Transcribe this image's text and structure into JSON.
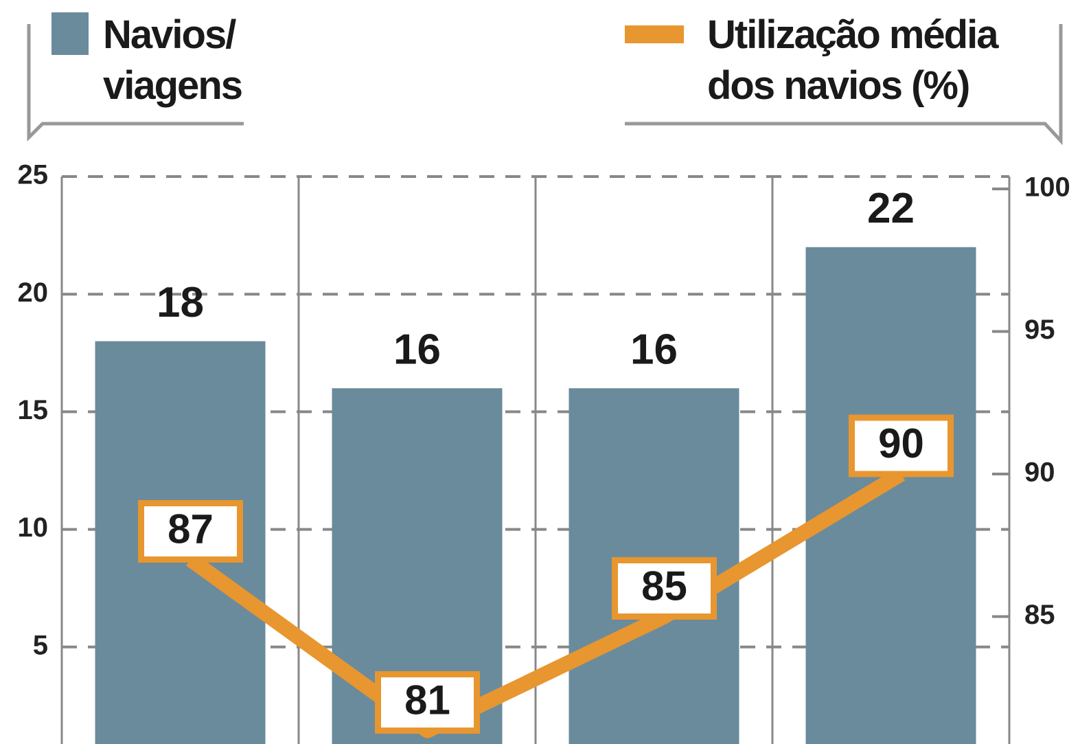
{
  "chart_data": {
    "type": "bar-line",
    "series": [
      {
        "name": "Navios/ viagens",
        "color": "#6a8b9c",
        "type": "bar",
        "axis": "y",
        "values": [
          18,
          16,
          16,
          22
        ]
      },
      {
        "name": "Utilização média dos navios (%)",
        "color": "#e8962f",
        "type": "line",
        "axis": "y2",
        "values": [
          87,
          81,
          85,
          90
        ]
      }
    ],
    "ylim": [
      0,
      25
    ],
    "yticks": [
      5,
      10,
      15,
      20,
      25
    ],
    "y2lim": [
      80,
      100
    ],
    "y2ticks": [
      85,
      90,
      95,
      100
    ],
    "grid": true
  }
}
